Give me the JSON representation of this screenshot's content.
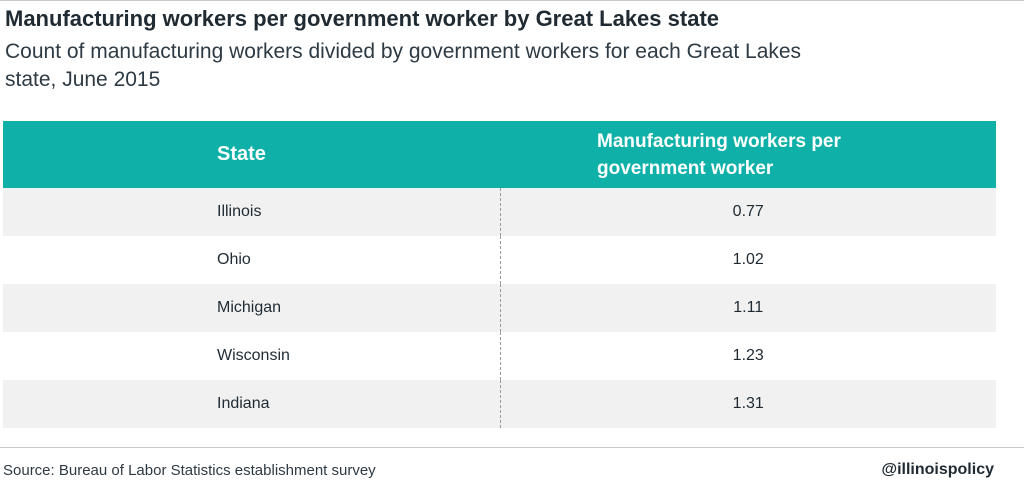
{
  "title": "Manufacturing workers per government worker by Great Lakes state",
  "subtitle": "Count of manufacturing workers divided by government workers for each Great Lakes state, June 2015",
  "source": "Source: Bureau of Labor Statistics establishment survey",
  "handle": "@illinoispolicy",
  "colors": {
    "header_bg": "#0fb0a8",
    "header_text": "#ffffff",
    "stripe": "#f1f1f1"
  },
  "chart_data": {
    "type": "table",
    "columns": [
      "State",
      "Manufacturing workers per government worker"
    ],
    "rows": [
      {
        "state": "Illinois",
        "value": "0.77"
      },
      {
        "state": "Ohio",
        "value": "1.02"
      },
      {
        "state": "Michigan",
        "value": "1.11"
      },
      {
        "state": "Wisconsin",
        "value": "1.23"
      },
      {
        "state": "Indiana",
        "value": "1.31"
      }
    ]
  }
}
